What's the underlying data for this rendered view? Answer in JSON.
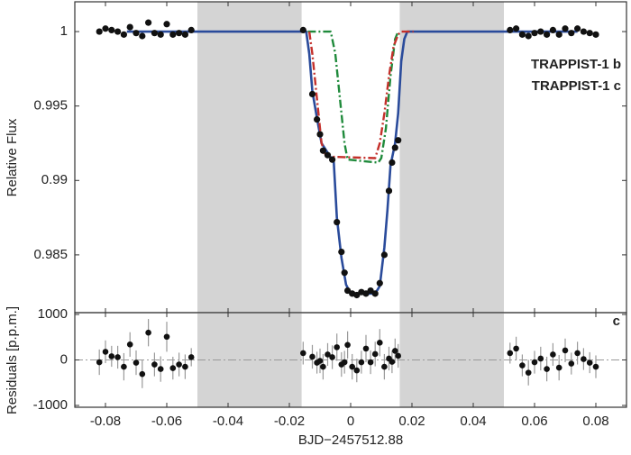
{
  "chart_data": [
    {
      "type": "scatter",
      "ylabel": "Relative Flux",
      "xlim": [
        -0.09,
        0.09
      ],
      "ylim": [
        0.98112,
        1.002
      ],
      "xticks": [
        -0.08,
        -0.06,
        -0.04,
        -0.02,
        0,
        0.02,
        0.04,
        0.06,
        0.08
      ],
      "yticks": [
        0.985,
        0.99,
        0.995,
        1
      ],
      "shaded_regions": [
        [
          -0.05,
          -0.016
        ],
        [
          0.016,
          0.05
        ]
      ],
      "shade_color": "#d4d4d4",
      "points": {
        "color": "#111111",
        "x": [
          -0.082,
          -0.08,
          -0.078,
          -0.076,
          -0.074,
          -0.072,
          -0.07,
          -0.068,
          -0.066,
          -0.064,
          -0.062,
          -0.06,
          -0.058,
          -0.056,
          -0.054,
          -0.052,
          -0.0155,
          -0.0125,
          -0.011,
          -0.01,
          -0.009,
          -0.0075,
          -0.006,
          -0.0045,
          -0.003,
          -0.002,
          -0.001,
          0.0005,
          0.002,
          0.0035,
          0.005,
          0.0065,
          0.008,
          0.0095,
          0.011,
          0.0125,
          0.0135,
          0.0145,
          0.0155,
          0.052,
          0.054,
          0.056,
          0.058,
          0.06,
          0.062,
          0.064,
          0.066,
          0.068,
          0.07,
          0.072,
          0.074,
          0.076,
          0.078,
          0.08
        ],
        "values": [
          1.0,
          1.0002,
          1.0001,
          1.0,
          0.9998,
          1.0003,
          0.9999,
          0.9997,
          1.0006,
          0.9999,
          0.9998,
          1.0005,
          0.9998,
          0.9999,
          0.9998,
          1.0001,
          1.0001,
          0.9958,
          0.9941,
          0.9931,
          0.992,
          0.9917,
          0.9914,
          0.9872,
          0.9852,
          0.9838,
          0.9826,
          0.9824,
          0.9823,
          0.9825,
          0.9824,
          0.9826,
          0.9824,
          0.9831,
          0.985,
          0.9893,
          0.9912,
          0.9922,
          0.9927,
          1.0001,
          1.0002,
          0.9998,
          0.9997,
          0.9999,
          1.0,
          0.9998,
          1.0001,
          0.9998,
          1.0002,
          0.9999,
          1.0002,
          1.0,
          0.9999,
          0.9998
        ]
      },
      "model": {
        "color": "#2a4b9b",
        "x": [
          -0.073,
          -0.0145,
          -0.0135,
          -0.0125,
          -0.011,
          -0.0095,
          -0.007,
          -0.0055,
          -0.0045,
          -0.003,
          -0.0015,
          0,
          0.008,
          0.0095,
          0.011,
          0.012,
          0.013,
          0.0145,
          0.0155,
          0.0165,
          0.0175,
          0.0185,
          0.074
        ],
        "values": [
          1,
          1,
          0.9985,
          0.996,
          0.9942,
          0.9925,
          0.9917,
          0.9912,
          0.9875,
          0.9848,
          0.983,
          0.9824,
          0.9824,
          0.9829,
          0.9855,
          0.988,
          0.991,
          0.9925,
          0.9945,
          0.998,
          0.9995,
          1,
          1
        ]
      },
      "series": [
        {
          "name": "TRAPPIST-1 b",
          "color": "#1f8a3b",
          "style": "dashdot",
          "x": [
            -0.014,
            -0.0065,
            -0.005,
            -0.0035,
            -0.002,
            -0.001,
            0.009,
            0.01,
            0.0115,
            0.013,
            0.0145,
            0.0155
          ],
          "values": [
            1,
            1,
            0.9985,
            0.9955,
            0.9925,
            0.9914,
            0.9912,
            0.9915,
            0.9935,
            0.997,
            0.9995,
            1
          ]
        },
        {
          "name": "TRAPPIST-1 c",
          "color": "#c4302b",
          "style": "dashdot",
          "x": [
            -0.0135,
            -0.0125,
            -0.011,
            -0.0095,
            -0.008,
            0.008,
            0.0095,
            0.011,
            0.0125,
            0.014,
            0.0155,
            0.0165,
            0.0205
          ],
          "values": [
            1,
            0.9985,
            0.9955,
            0.9925,
            0.9916,
            0.9915,
            0.9925,
            0.9945,
            0.997,
            0.999,
            0.9998,
            1,
            1
          ]
        }
      ],
      "legend": "upper right"
    },
    {
      "type": "errorbar",
      "panel_label": "c",
      "xlabel": "BJD−2457512.88",
      "ylabel": "Residuals [p.p.m.]",
      "xlim": [
        -0.09,
        0.09
      ],
      "ylim": [
        -1040,
        1040
      ],
      "xticks": [
        -0.08,
        -0.06,
        -0.04,
        -0.02,
        0,
        0.02,
        0.04,
        0.06,
        0.08
      ],
      "yticks": [
        -1000,
        0,
        1000
      ],
      "shaded_regions": [
        [
          -0.05,
          -0.016
        ],
        [
          0.016,
          0.05
        ]
      ],
      "shade_color": "#d4d4d4",
      "zero_line": true,
      "color": "#111111",
      "error_color": "#9a9a9a",
      "x": [
        -0.082,
        -0.08,
        -0.078,
        -0.076,
        -0.074,
        -0.072,
        -0.07,
        -0.068,
        -0.066,
        -0.064,
        -0.062,
        -0.06,
        -0.058,
        -0.056,
        -0.054,
        -0.052,
        -0.0155,
        -0.0125,
        -0.011,
        -0.01,
        -0.009,
        -0.0075,
        -0.006,
        -0.0045,
        -0.003,
        -0.002,
        -0.001,
        0.0005,
        0.002,
        0.0035,
        0.005,
        0.0065,
        0.008,
        0.0095,
        0.011,
        0.0125,
        0.0135,
        0.0145,
        0.0155,
        0.052,
        0.054,
        0.056,
        0.058,
        0.06,
        0.062,
        0.064,
        0.066,
        0.068,
        0.07,
        0.072,
        0.074,
        0.076,
        0.078,
        0.08
      ],
      "values": [
        -50,
        180,
        80,
        60,
        -150,
        340,
        -60,
        -310,
        600,
        -100,
        -200,
        510,
        -180,
        -100,
        -150,
        60,
        150,
        70,
        -60,
        -20,
        -150,
        120,
        60,
        280,
        -100,
        -50,
        330,
        -150,
        -230,
        -50,
        250,
        -50,
        130,
        380,
        -150,
        30,
        -40,
        200,
        90,
        150,
        250,
        -120,
        -280,
        -50,
        30,
        -200,
        120,
        -170,
        210,
        -80,
        150,
        20,
        -60,
        -150
      ],
      "errors": [
        280,
        250,
        230,
        250,
        300,
        270,
        270,
        310,
        300,
        260,
        280,
        330,
        250,
        260,
        270,
        200,
        250,
        260,
        240,
        270,
        280,
        250,
        260,
        300,
        270,
        250,
        300,
        280,
        260,
        250,
        300,
        260,
        270,
        300,
        280,
        260,
        250,
        270,
        260,
        230,
        260,
        240,
        280,
        250,
        260,
        270,
        250,
        280,
        260,
        240,
        250,
        240,
        230,
        250
      ]
    }
  ]
}
